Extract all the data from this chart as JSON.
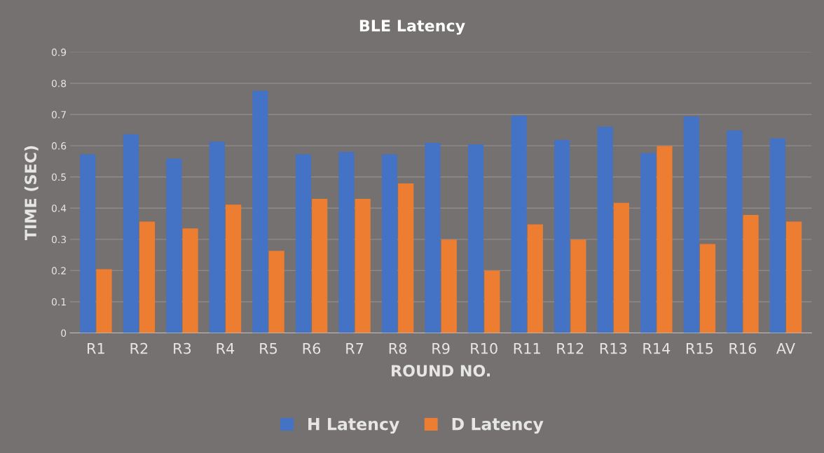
{
  "chart_data": {
    "type": "bar",
    "title": "BLE Latency",
    "xlabel": "ROUND NO.",
    "ylabel": "TIME (SEC)",
    "categories": [
      "R1",
      "R2",
      "R3",
      "R4",
      "R5",
      "R6",
      "R7",
      "R8",
      "R9",
      "R10",
      "R11",
      "R12",
      "R13",
      "R14",
      "R15",
      "R16",
      "AV"
    ],
    "series": [
      {
        "name": "H Latency",
        "color": "#4472c4",
        "values": [
          0.572,
          0.637,
          0.559,
          0.613,
          0.776,
          0.572,
          0.58,
          0.572,
          0.609,
          0.604,
          0.696,
          0.619,
          0.661,
          0.576,
          0.694,
          0.649,
          0.624
        ]
      },
      {
        "name": "D Latency",
        "color": "#ed7d31",
        "values": [
          0.204,
          0.357,
          0.335,
          0.411,
          0.263,
          0.43,
          0.43,
          0.479,
          0.299,
          0.2,
          0.348,
          0.299,
          0.417,
          0.599,
          0.285,
          0.378,
          0.357
        ]
      }
    ],
    "ylim": [
      0,
      0.9
    ],
    "yticks": [
      0,
      0.1,
      0.2,
      0.3,
      0.4,
      0.5,
      0.6,
      0.7,
      0.8,
      0.9
    ],
    "grid": "y",
    "legend": "bottom"
  }
}
